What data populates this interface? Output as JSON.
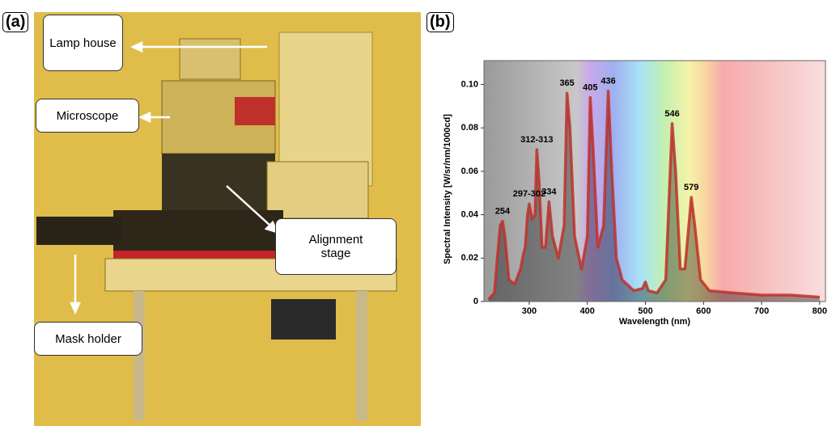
{
  "panel_a": {
    "label": "(a)",
    "callouts": [
      "Lamp house",
      "Microscope",
      "Alignment stage",
      "Mask holder"
    ]
  },
  "chart_data": {
    "type": "line",
    "label": "(b)",
    "x_label": "Wavelength (nm)",
    "y_label": "Spectral Intensity [W/sr/nm/1000cd]",
    "x": [
      230,
      240,
      245,
      250,
      254,
      258,
      265,
      275,
      285,
      290,
      293,
      297,
      300,
      305,
      310,
      313,
      317,
      322,
      328,
      334,
      340,
      350,
      360,
      365,
      370,
      378,
      390,
      400,
      405,
      410,
      418,
      428,
      436,
      442,
      450,
      460,
      480,
      495,
      500,
      505,
      520,
      535,
      546,
      552,
      560,
      568,
      579,
      585,
      595,
      610,
      650,
      700,
      750,
      800
    ],
    "values": [
      0.001,
      0.004,
      0.02,
      0.035,
      0.037,
      0.03,
      0.01,
      0.008,
      0.015,
      0.022,
      0.025,
      0.04,
      0.045,
      0.038,
      0.04,
      0.07,
      0.055,
      0.025,
      0.025,
      0.046,
      0.03,
      0.02,
      0.035,
      0.096,
      0.08,
      0.03,
      0.015,
      0.03,
      0.094,
      0.07,
      0.025,
      0.035,
      0.097,
      0.06,
      0.02,
      0.01,
      0.005,
      0.006,
      0.009,
      0.005,
      0.004,
      0.01,
      0.082,
      0.06,
      0.015,
      0.015,
      0.048,
      0.035,
      0.01,
      0.005,
      0.004,
      0.003,
      0.003,
      0.002
    ],
    "color": "#c0302a",
    "xlim": [
      222,
      810
    ],
    "ylim": [
      0,
      0.111
    ],
    "xticks": [
      300,
      400,
      500,
      600,
      700,
      800
    ],
    "yticks": [
      0,
      0.02,
      0.04,
      0.06,
      0.08,
      {
        "value": 0.1,
        "label": "0.10"
      }
    ],
    "annotations": [
      {
        "text": "254",
        "x": 254
      },
      {
        "text": "297-302",
        "x": 300
      },
      {
        "text": "312-313",
        "x": 313
      },
      {
        "text": "334",
        "x": 334
      },
      {
        "text": "365",
        "x": 365
      },
      {
        "text": "405",
        "x": 405
      },
      {
        "text": "436",
        "x": 436
      },
      {
        "text": "546",
        "x": 546
      },
      {
        "text": "579",
        "x": 579
      }
    ]
  }
}
